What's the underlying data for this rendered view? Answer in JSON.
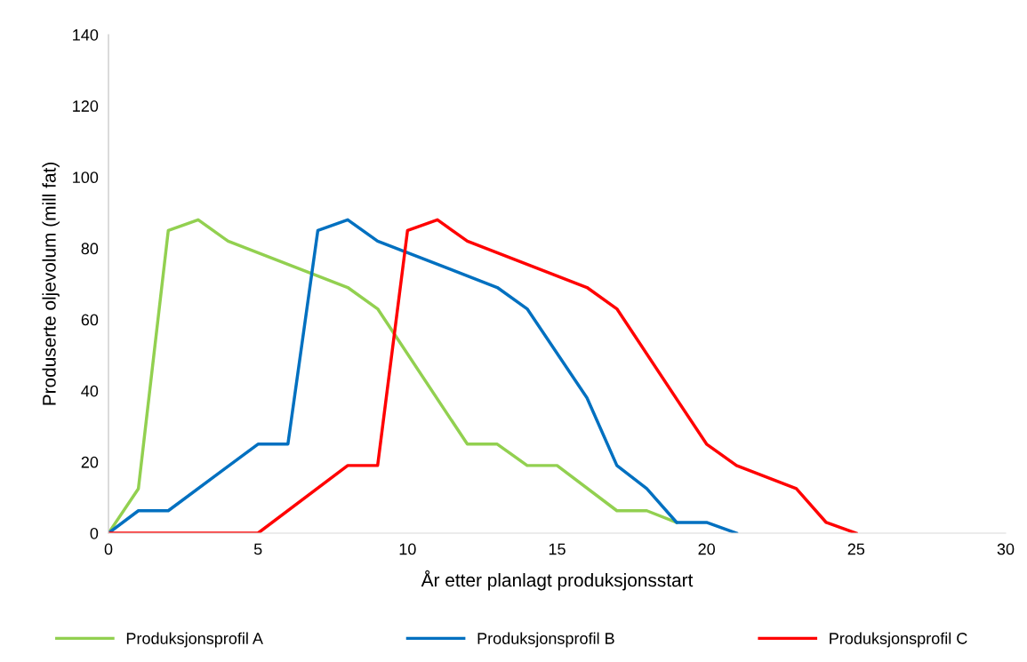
{
  "chart_data": {
    "type": "line",
    "xlabel": "År etter planlagt produksjonsstart",
    "ylabel": "Produserte oljevolum (mill fat)",
    "xlim": [
      0,
      30
    ],
    "xticks": [
      0,
      5,
      10,
      15,
      20,
      25,
      30
    ],
    "ylim": [
      0,
      140
    ],
    "yticks": [
      0,
      20,
      40,
      60,
      80,
      100,
      120,
      140
    ],
    "grid": false,
    "legend": "bottom",
    "marker": "none",
    "line_style": "solid",
    "series": [
      {
        "name": "Produksjonsprofil A",
        "color": "#92d050",
        "x": [
          0,
          1,
          2,
          3,
          4,
          8,
          9,
          12,
          13,
          14,
          15,
          17,
          18,
          19
        ],
        "values": [
          0,
          12.5,
          85,
          88,
          82,
          69,
          63,
          25,
          25,
          19,
          19,
          6.3,
          6.3,
          3
        ]
      },
      {
        "name": "Produksjonsprofil B",
        "color": "#0070c0",
        "x": [
          0,
          1,
          2,
          5,
          6,
          7,
          8,
          9,
          13,
          14,
          16,
          17,
          18,
          19,
          20,
          21
        ],
        "values": [
          0,
          6.3,
          6.3,
          25,
          25,
          85,
          88,
          82,
          69,
          63,
          38,
          19,
          12.5,
          3,
          3,
          0
        ]
      },
      {
        "name": "Produksjonsprofil C",
        "color": "#ff0000",
        "x": [
          0,
          5,
          8,
          9,
          10,
          11,
          12,
          16,
          17,
          20,
          21,
          23,
          24,
          25
        ],
        "values": [
          0,
          0,
          19,
          19,
          85,
          88,
          82,
          69,
          63,
          25,
          19,
          12.5,
          3,
          0
        ]
      }
    ]
  }
}
